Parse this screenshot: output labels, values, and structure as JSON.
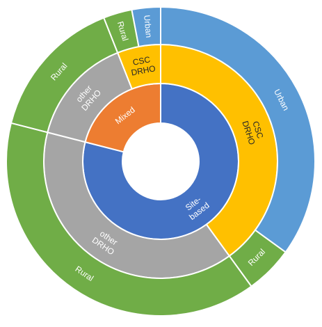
{
  "chart_data": {
    "type": "sunburst",
    "title": "",
    "colors": {
      "site_based": "#4472C4",
      "mixed": "#ED7D31",
      "csc_drho": "#FFC000",
      "other_drho": "#A5A5A5",
      "urban": "#5B9BD5",
      "rural": "#70AD47",
      "text_light": "#ffffff",
      "text_dark": "#262626"
    },
    "rings": [
      {
        "level": 1,
        "segments": [
          {
            "id": "site",
            "label": "Site-based",
            "lines": [
              "Site-",
              "based"
            ],
            "value": 79,
            "color_key": "site_based",
            "text_key": "text_light"
          },
          {
            "id": "mixed",
            "label": "Mixed",
            "lines": [
              "Mixed"
            ],
            "value": 21,
            "color_key": "mixed",
            "text_key": "text_light"
          }
        ]
      },
      {
        "level": 2,
        "segments": [
          {
            "id": "site-csc",
            "parent": "site",
            "label": "CSC DRHO",
            "lines": [
              "CSC",
              "DRHO"
            ],
            "value": 40,
            "color_key": "csc_drho",
            "text_key": "text_dark"
          },
          {
            "id": "site-other",
            "parent": "site",
            "label": "other DRHO",
            "lines": [
              "other",
              "DRHO"
            ],
            "value": 39,
            "color_key": "other_drho",
            "text_key": "text_light"
          },
          {
            "id": "mixed-other",
            "parent": "mixed",
            "label": "other DRHO",
            "lines": [
              "other",
              "DRHO"
            ],
            "value": 15,
            "color_key": "other_drho",
            "text_key": "text_light"
          },
          {
            "id": "mixed-csc",
            "parent": "mixed",
            "label": "CSC DRHO",
            "lines": [
              "CSC",
              "DRHO"
            ],
            "value": 6,
            "color_key": "csc_drho",
            "text_key": "text_dark"
          }
        ]
      },
      {
        "level": 3,
        "segments": [
          {
            "id": "site-csc-urban",
            "parent": "site-csc",
            "label": "Urban",
            "lines": [
              "Urban"
            ],
            "value": 35,
            "color_key": "urban",
            "text_key": "text_light"
          },
          {
            "id": "site-csc-rural",
            "parent": "site-csc",
            "label": "Rural",
            "lines": [
              "Rural"
            ],
            "value": 5,
            "color_key": "rural",
            "text_key": "text_light"
          },
          {
            "id": "site-other-rural",
            "parent": "site-other",
            "label": "Rural",
            "lines": [
              "Rural"
            ],
            "value": 39,
            "color_key": "rural",
            "text_key": "text_light"
          },
          {
            "id": "mixed-other-rural",
            "parent": "mixed-other",
            "label": "Rural",
            "lines": [
              "Rural"
            ],
            "value": 15,
            "color_key": "rural",
            "text_key": "text_light"
          },
          {
            "id": "mixed-csc-rural",
            "parent": "mixed-csc",
            "label": "Rural",
            "lines": [
              "Rural"
            ],
            "value": 3,
            "color_key": "rural",
            "text_key": "text_light"
          },
          {
            "id": "mixed-csc-urban",
            "parent": "mixed-csc",
            "label": "Urban",
            "lines": [
              "Urban"
            ],
            "value": 3,
            "color_key": "urban",
            "text_key": "text_light"
          }
        ]
      }
    ],
    "legend": "none",
    "grid": false
  }
}
